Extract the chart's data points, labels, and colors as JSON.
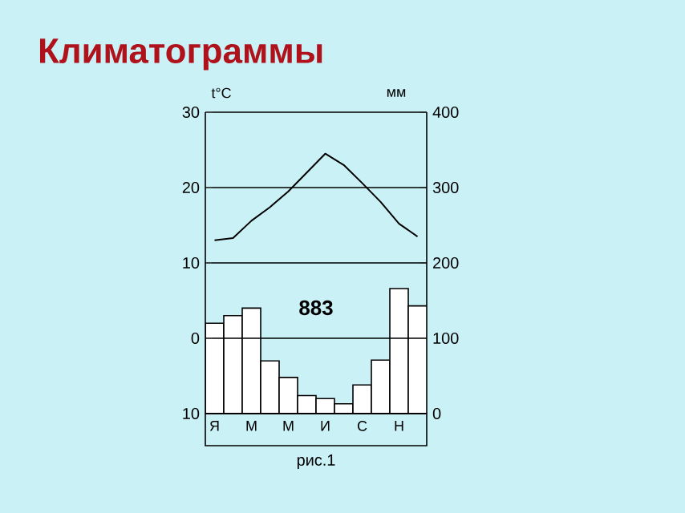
{
  "chart_data": {
    "type": "bar",
    "title": "Климатограммы",
    "ylabel": "t°C",
    "y2label": "мм",
    "categories": [
      "Я",
      null,
      "М",
      null,
      "М",
      null,
      "И",
      null,
      "С",
      null,
      "Н",
      null
    ],
    "series": [
      {
        "axis": "y2",
        "color": "#ffffff",
        "values": [
          120,
          130,
          140,
          70,
          48,
          24,
          20,
          13,
          38,
          71,
          166,
          143
        ]
      },
      {
        "type": "line",
        "color": "#000000",
        "values": [
          13.0,
          13.3,
          15.6,
          17.4,
          19.5,
          22.0,
          24.5,
          23.0,
          20.6,
          18.1,
          15.2,
          13.5
        ]
      }
    ],
    "ylim": [
      -10,
      30
    ],
    "yticks": [
      30,
      20,
      10,
      0,
      {
        "value": -10,
        "label": "10"
      }
    ],
    "y2lim": [
      0,
      400
    ],
    "y2ticks": [
      0,
      100,
      200,
      300,
      400
    ],
    "grid": "y",
    "annotations": [
      "883",
      "рис.1"
    ]
  }
}
